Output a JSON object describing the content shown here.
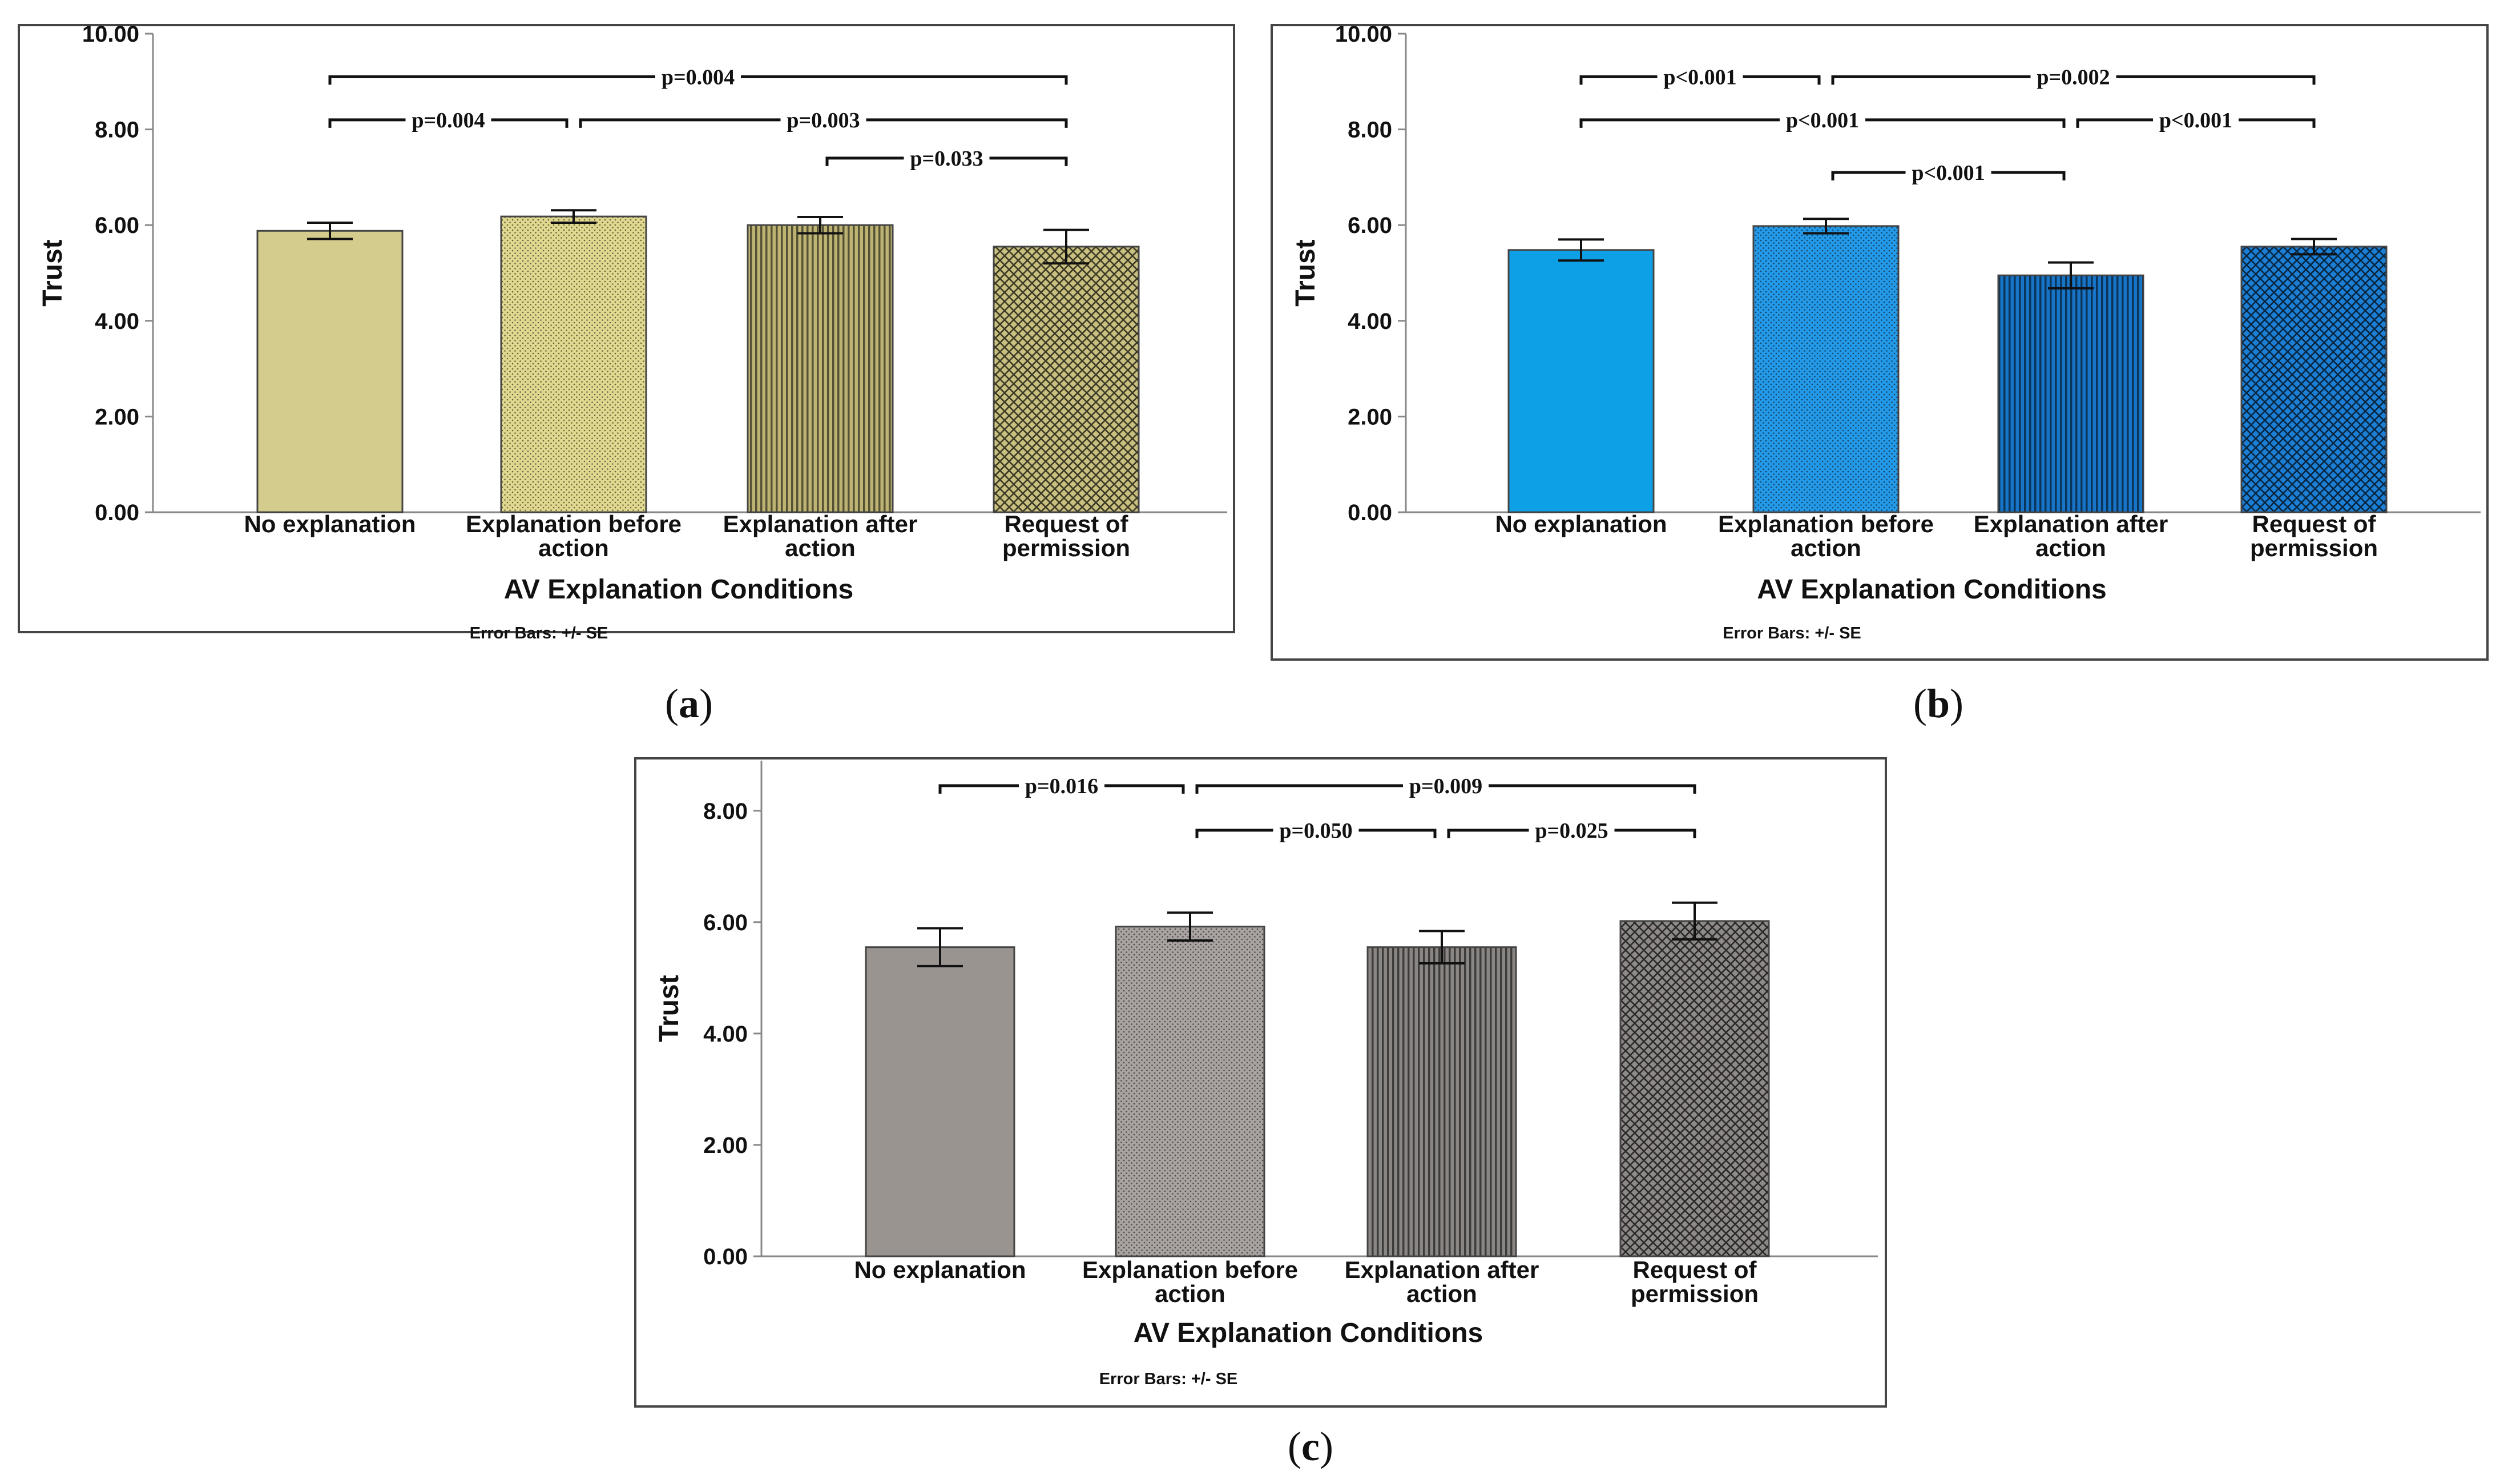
{
  "chart_data": [
    {
      "panel": "a",
      "type": "bar",
      "categories": [
        [
          "No explanation"
        ],
        [
          "Explanation before",
          "action"
        ],
        [
          "Explanation after",
          "action"
        ],
        [
          "Request of",
          "permission"
        ]
      ],
      "values": [
        5.88,
        6.18,
        6.0,
        5.55
      ],
      "errors": [
        0.17,
        0.13,
        0.17,
        0.35
      ],
      "ylabel": "Trust",
      "xlabel": "AV Explanation Conditions",
      "note": "Error Bars: +/- SE",
      "ylim": [
        0,
        10
      ],
      "yticks": [
        "0.00",
        "2.00",
        "4.00",
        "6.00",
        "8.00",
        "10.00"
      ],
      "ytick_values": [
        0,
        2,
        4,
        6,
        8,
        10
      ],
      "colors": [
        "#d4cc8c",
        "#e0d88e",
        "#bdb474",
        "#c9c080"
      ],
      "patterns": [
        "solid",
        "dots",
        "vlines",
        "cross"
      ],
      "comparisons": [
        {
          "from": 0,
          "to": 3,
          "label": "p=0.004",
          "level": 9.1
        },
        {
          "from": 0,
          "to": 1,
          "label": "p=0.004",
          "level": 8.2
        },
        {
          "from": 1,
          "to": 3,
          "label": "p=0.003",
          "level": 8.2
        },
        {
          "from": 2,
          "to": 3,
          "label": "p=0.033",
          "level": 7.4
        }
      ],
      "caption": "a"
    },
    {
      "panel": "b",
      "type": "bar",
      "categories": [
        [
          "No explanation"
        ],
        [
          "Explanation before",
          "action"
        ],
        [
          "Explanation after",
          "action"
        ],
        [
          "Request of",
          "permission"
        ]
      ],
      "values": [
        5.48,
        5.98,
        4.95,
        5.55
      ],
      "errors": [
        0.22,
        0.15,
        0.27,
        0.16
      ],
      "ylabel": "Trust",
      "xlabel": "AV Explanation Conditions",
      "note": "Error Bars: +/- SE",
      "ylim": [
        0,
        10
      ],
      "yticks": [
        "0.00",
        "2.00",
        "4.00",
        "6.00",
        "8.00",
        "10.00"
      ],
      "ytick_values": [
        0,
        2,
        4,
        6,
        8,
        10
      ],
      "colors": [
        "#0ea0e6",
        "#2399e8",
        "#1774c6",
        "#1c7fd6"
      ],
      "patterns": [
        "solid",
        "dots",
        "vlines",
        "cross"
      ],
      "comparisons": [
        {
          "from": 0,
          "to": 1,
          "label": "p<0.001",
          "level": 9.1
        },
        {
          "from": 1,
          "to": 3,
          "label": "p=0.002",
          "level": 9.1
        },
        {
          "from": 0,
          "to": 2,
          "label": "p<0.001",
          "level": 8.2
        },
        {
          "from": 2,
          "to": 3,
          "label": "p<0.001",
          "level": 8.2
        },
        {
          "from": 1,
          "to": 2,
          "label": "p<0.001",
          "level": 7.1
        }
      ],
      "caption": "b"
    },
    {
      "panel": "c",
      "type": "bar",
      "categories": [
        [
          "No explanation"
        ],
        [
          "Explanation before",
          "action"
        ],
        [
          "Explanation after",
          "action"
        ],
        [
          "Request of",
          "permission"
        ]
      ],
      "values": [
        5.55,
        5.92,
        5.55,
        6.02
      ],
      "errors": [
        0.34,
        0.25,
        0.29,
        0.33
      ],
      "ylabel": "Trust",
      "xlabel": "AV Explanation Conditions",
      "note": "Error Bars: +/- SE",
      "ylim": [
        0,
        8.9
      ],
      "yticks": [
        "0.00",
        "2.00",
        "4.00",
        "6.00",
        "8.00"
      ],
      "ytick_values": [
        0,
        2,
        4,
        6,
        8
      ],
      "colors": [
        "#9a9490",
        "#a8a2a0",
        "#8a8684",
        "#8e8a88"
      ],
      "patterns": [
        "solid",
        "dots",
        "vlines",
        "cross"
      ],
      "comparisons": [
        {
          "from": 0,
          "to": 1,
          "label": "p=0.016",
          "level": 8.45
        },
        {
          "from": 1,
          "to": 3,
          "label": "p=0.009",
          "level": 8.45
        },
        {
          "from": 1,
          "to": 2,
          "label": "p=0.050",
          "level": 7.65
        },
        {
          "from": 2,
          "to": 3,
          "label": "p=0.025",
          "level": 7.65
        }
      ],
      "caption": "c"
    }
  ]
}
